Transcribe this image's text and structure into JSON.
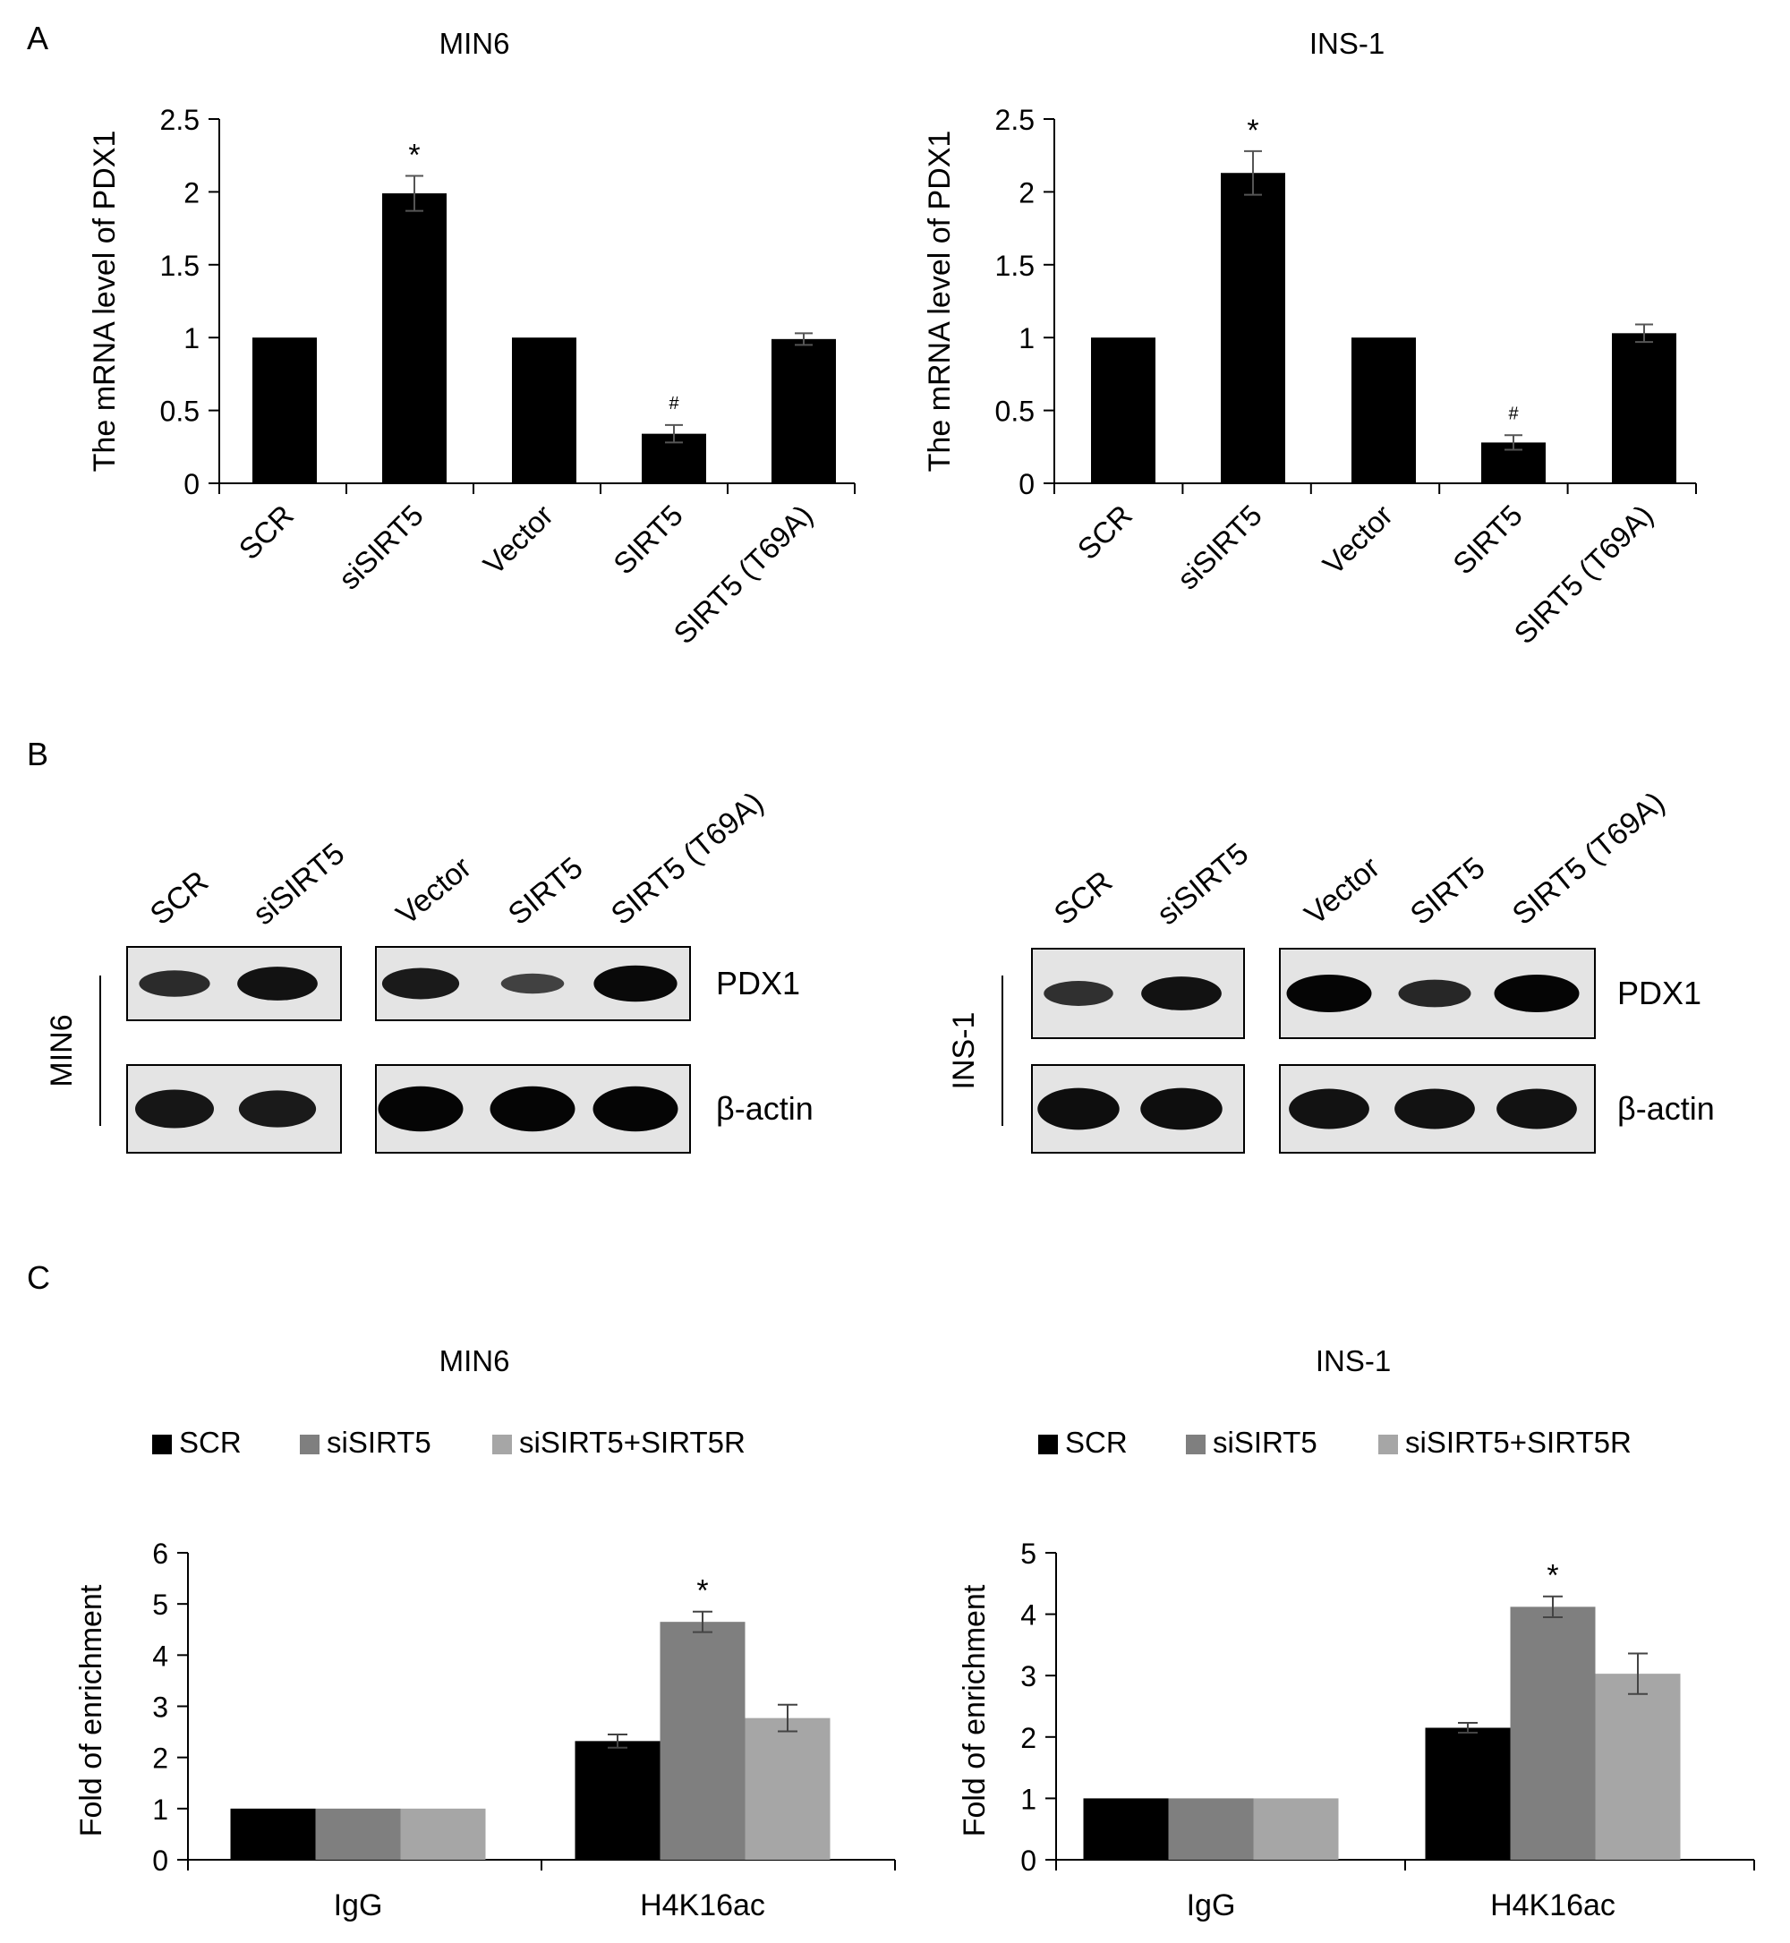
{
  "panel_labels": {
    "a": "A",
    "b": "B",
    "c": "C"
  },
  "colors": {
    "bar": "#000000",
    "scr": "#000000",
    "sisirt5": "#7f7f7f",
    "rescue": "#a6a6a6",
    "blot_bg": "#e4e4e4"
  },
  "chart_data": [
    {
      "id": "A-MIN6",
      "type": "bar",
      "title": "MIN6",
      "xlabel": "",
      "ylabel": "The mRNA level of PDX1",
      "categories": [
        "SCR",
        "siSIRT5",
        "Vector",
        "SIRT5",
        "SIRT5 (T69A)"
      ],
      "values": [
        1.0,
        1.99,
        1.0,
        0.34,
        0.99
      ],
      "errors": [
        0.0,
        0.12,
        0.0,
        0.06,
        0.04
      ],
      "annotations": [
        "",
        "*",
        "",
        "#",
        ""
      ],
      "ylim": [
        0,
        2.5
      ],
      "yticks": [
        0,
        0.5,
        1,
        1.5,
        2,
        2.5
      ],
      "ytick_labels": [
        "0",
        "0.5",
        "1",
        "1.5",
        "2",
        "2.5"
      ]
    },
    {
      "id": "A-INS1",
      "type": "bar",
      "title": "INS-1",
      "xlabel": "",
      "ylabel": "The mRNA level of PDX1",
      "categories": [
        "SCR",
        "siSIRT5",
        "Vector",
        "SIRT5",
        "SIRT5 (T69A)"
      ],
      "values": [
        1.0,
        2.13,
        1.0,
        0.28,
        1.03
      ],
      "errors": [
        0.0,
        0.15,
        0.0,
        0.05,
        0.06
      ],
      "annotations": [
        "",
        "*",
        "",
        "#",
        ""
      ],
      "ylim": [
        0,
        2.5
      ],
      "yticks": [
        0,
        0.5,
        1,
        1.5,
        2,
        2.5
      ],
      "ytick_labels": [
        "0",
        "0.5",
        "1",
        "1.5",
        "2",
        "2.5"
      ]
    },
    {
      "id": "C-MIN6",
      "type": "bar",
      "title": "MIN6",
      "xlabel": "",
      "ylabel": "Fold of enrichment",
      "categories": [
        "IgG",
        "H4K16ac"
      ],
      "series": [
        {
          "name": "SCR",
          "values": [
            1.0,
            2.32
          ],
          "errors": [
            0.0,
            0.13
          ]
        },
        {
          "name": "siSIRT5",
          "values": [
            1.0,
            4.65
          ],
          "errors": [
            0.0,
            0.2
          ]
        },
        {
          "name": "siSIRT5+SIRT5R",
          "values": [
            1.0,
            2.77
          ],
          "errors": [
            0.0,
            0.26
          ]
        }
      ],
      "annotations": [
        {
          "category": "H4K16ac",
          "series": "siSIRT5",
          "text": "*"
        }
      ],
      "ylim": [
        0,
        6
      ],
      "yticks": [
        0,
        1,
        2,
        3,
        4,
        5,
        6
      ],
      "ytick_labels": [
        "0",
        "1",
        "2",
        "3",
        "4",
        "5",
        "6"
      ],
      "legend": "top"
    },
    {
      "id": "C-INS1",
      "type": "bar",
      "title": "INS-1",
      "xlabel": "",
      "ylabel": "Fold of enrichment",
      "categories": [
        "IgG",
        "H4K16ac"
      ],
      "series": [
        {
          "name": "SCR",
          "values": [
            1.0,
            2.15
          ],
          "errors": [
            0.0,
            0.08
          ]
        },
        {
          "name": "siSIRT5",
          "values": [
            1.0,
            4.12
          ],
          "errors": [
            0.0,
            0.17
          ]
        },
        {
          "name": "siSIRT5+SIRT5R",
          "values": [
            1.0,
            3.03
          ],
          "errors": [
            0.0,
            0.33
          ]
        }
      ],
      "annotations": [
        {
          "category": "H4K16ac",
          "series": "siSIRT5",
          "text": "*"
        }
      ],
      "ylim": [
        0,
        5
      ],
      "yticks": [
        0,
        1,
        2,
        3,
        4,
        5
      ],
      "ytick_labels": [
        "0",
        "1",
        "2",
        "3",
        "4",
        "5"
      ],
      "legend": "top"
    }
  ],
  "blots": [
    {
      "id": "B-MIN6",
      "cell_line": "MIN6",
      "lanes": [
        "SCR",
        "siSIRT5",
        "Vector",
        "SIRT5",
        "SIRT5 (T69A)"
      ],
      "rows": [
        {
          "label": "PDX1",
          "intensity": [
            0.55,
            0.85,
            0.75,
            0.3,
            0.95
          ]
        },
        {
          "label": "β-actin",
          "intensity": [
            0.8,
            0.75,
            1.0,
            1.0,
            1.0
          ]
        }
      ]
    },
    {
      "id": "B-INS1",
      "cell_line": "INS-1",
      "lanes": [
        "SCR",
        "siSIRT5",
        "Vector",
        "SIRT5",
        "SIRT5 (T69A)"
      ],
      "rows": [
        {
          "label": "PDX1",
          "intensity": [
            0.5,
            0.85,
            1.0,
            0.6,
            1.0
          ]
        },
        {
          "label": "β-actin",
          "intensity": [
            0.9,
            0.9,
            0.85,
            0.85,
            0.85
          ]
        }
      ]
    }
  ]
}
